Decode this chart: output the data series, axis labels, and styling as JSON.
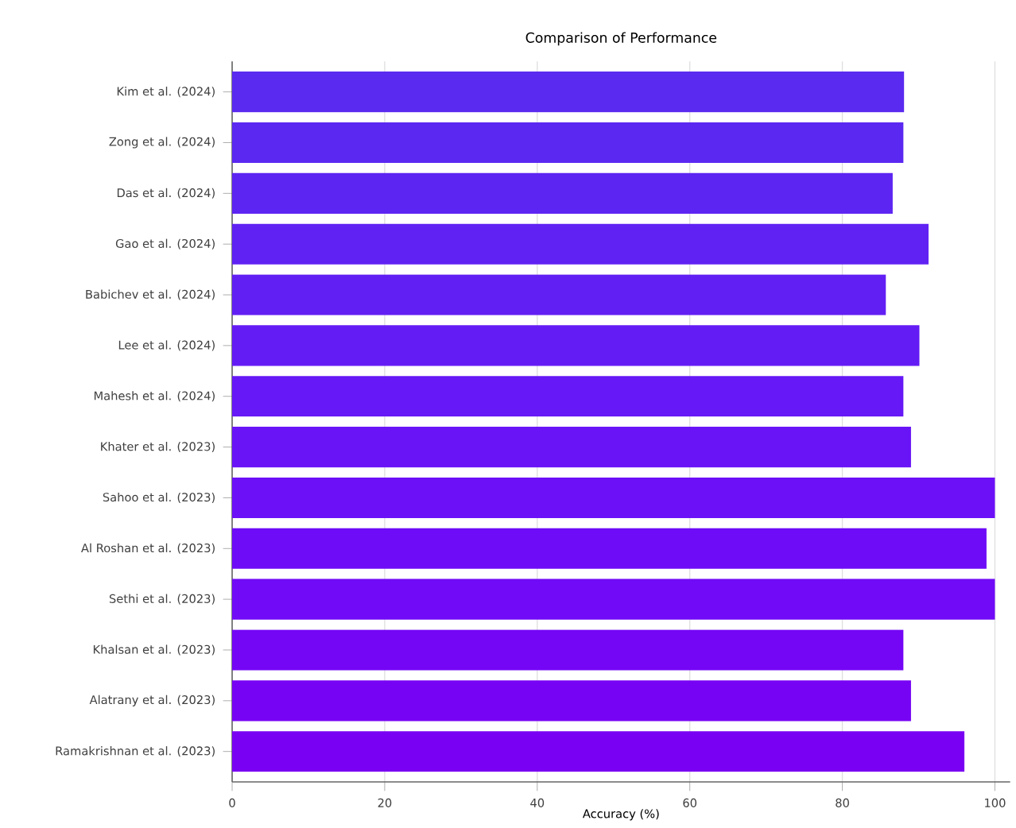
{
  "chart_data": {
    "type": "bar",
    "orientation": "horizontal",
    "title": "Comparison of Performance",
    "xlabel": "Accuracy (%)",
    "categories": [
      "Kim et al. (2024)",
      "Zong et al. (2024)",
      "Das et al. (2024)",
      "Gao et al. (2024)",
      "Babichev et al. (2024)",
      "Lee et al. (2024)",
      "Mahesh et al. (2024)",
      "Khater et al. (2023)",
      "Sahoo et al. (2023)",
      "Al Roshan et al. (2023)",
      "Sethi et al. (2023)",
      "Khalsan et al. (2023)",
      "Alatrany et al. (2023)",
      "Ramakrishnan et al. (2023)"
    ],
    "values": [
      88.1,
      88,
      86.6,
      91.3,
      85.7,
      90.1,
      88,
      89,
      100,
      98.9,
      100,
      88,
      89,
      96
    ],
    "colors": [
      "#5a2af0",
      "#5b28f1",
      "#5d25f2",
      "#5f22f3",
      "#621ff4",
      "#641cf5",
      "#6618f6",
      "#6914f7",
      "#6c10f8",
      "#6e0cf7",
      "#710af6",
      "#7406f5",
      "#7703f4",
      "#7a00f3"
    ],
    "xlim": [
      0,
      102
    ],
    "xticks": [
      0,
      20,
      40,
      60,
      80,
      100
    ],
    "grid": "x"
  }
}
